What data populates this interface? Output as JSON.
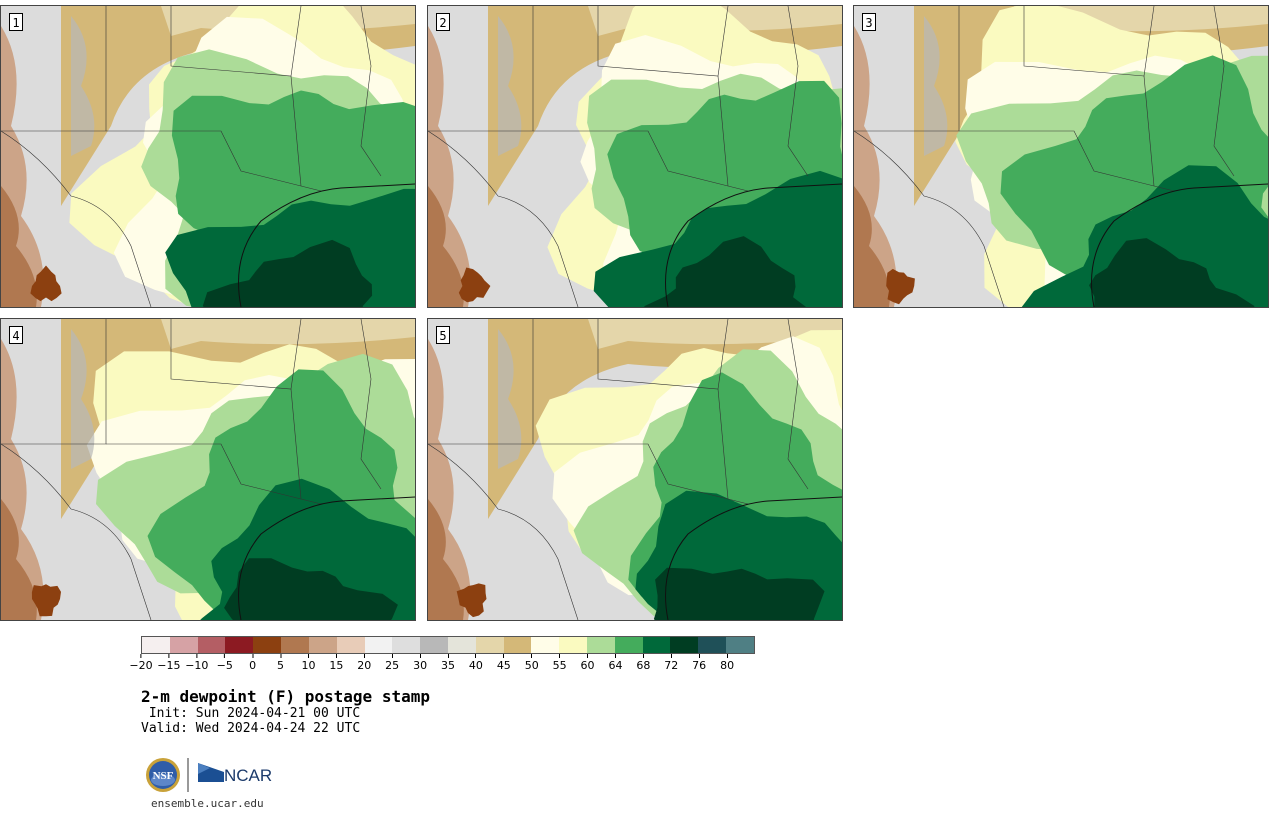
{
  "panels": [
    {
      "label": "1"
    },
    {
      "label": "2"
    },
    {
      "label": "3"
    },
    {
      "label": "4"
    },
    {
      "label": "5"
    }
  ],
  "colorbar": {
    "colors": [
      "#f5efef",
      "#d6a2a5",
      "#b45e64",
      "#8c1a22",
      "#8c4010",
      "#b07850",
      "#cca488",
      "#e8ccb8",
      "#f2f2f2",
      "#dedede",
      "#b8b8b8",
      "#e4e4da",
      "#e4d6aa",
      "#d4b878",
      "#fffde8",
      "#fafac0",
      "#acdc98",
      "#44ac5c",
      "#00693a",
      "#003d22",
      "#1f5058",
      "#4f7f84"
    ],
    "ticks": [
      "−20",
      "−15",
      "−10",
      "−5",
      "0",
      "5",
      "10",
      "15",
      "20",
      "25",
      "30",
      "35",
      "40",
      "45",
      "50",
      "55",
      "60",
      "64",
      "68",
      "72",
      "76",
      "80"
    ]
  },
  "title": "2-m dewpoint (F) postage stamp",
  "init": " Init: Sun 2024-04-21 00 UTC",
  "valid": "Valid: Wed 2024-04-24 22 UTC",
  "logos": {
    "nsf": "NSF",
    "ncar": "NCAR"
  },
  "url": "ensemble.ucar.edu"
}
